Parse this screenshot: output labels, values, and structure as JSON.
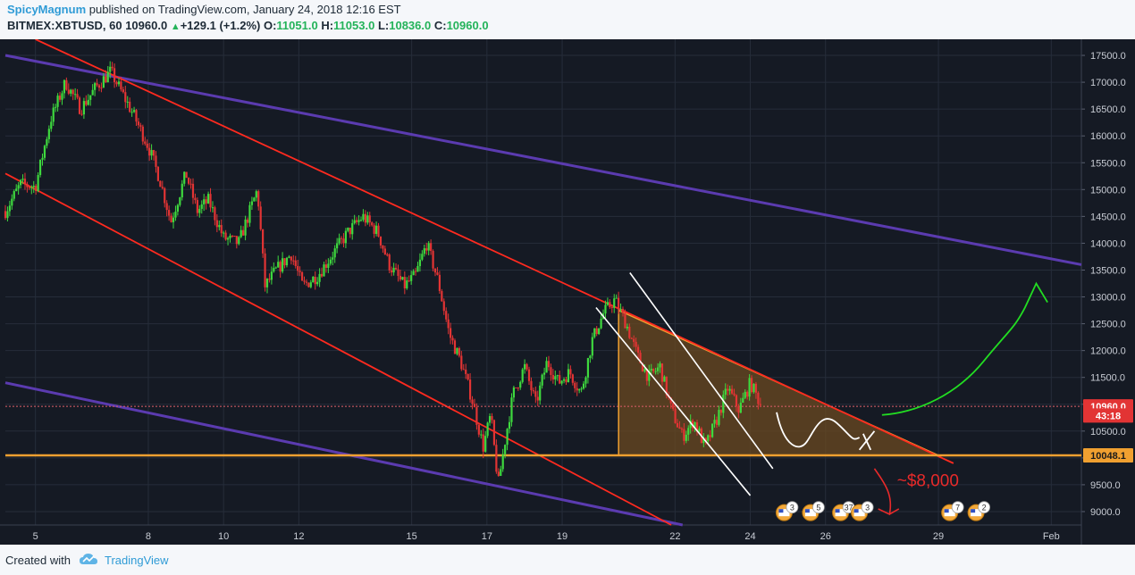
{
  "header": {
    "author": "SpicyMagnum",
    "published": "published on TradingView.com, January 24, 2018 12:16 EST",
    "symbol": "BITMEX:XBTUSD, 60",
    "last": "10960.0",
    "change": "+129.1 (+1.2%)",
    "o_label": "O:",
    "o_value": "11051.0",
    "h_label": "H:",
    "h_value": "11053.0",
    "l_label": "L:",
    "l_value": "10836.0",
    "c_label": "C:",
    "c_value": "10960.0"
  },
  "footer": {
    "created": "Created with",
    "brand": "TradingView"
  },
  "colors": {
    "background": "#151a24",
    "grid": "#262d3a",
    "up": "#3ed93e",
    "down": "#e23434",
    "channel": "#ff2a1f",
    "purple": "#5b3bb0",
    "orange": "#f0a030",
    "wedge_fill": "#6b4a20",
    "white_lines": "#ffffff",
    "green_arrow": "#22dd22",
    "red_annot": "#e82a2a",
    "axis_text": "#c8ccd4"
  },
  "chart_data": {
    "type": "candlestick",
    "symbol": "BITMEX:XBTUSD",
    "timeframe": "60",
    "y_ticks": [
      "9000.0",
      "9500.0",
      "10000.0",
      "10500.0",
      "11000.0",
      "11500.0",
      "12000.0",
      "12500.0",
      "13000.0",
      "13500.0",
      "14000.0",
      "14500.0",
      "15000.0",
      "15500.0",
      "16000.0",
      "16500.0",
      "17000.0",
      "17500.0"
    ],
    "ylim": [
      8750,
      17800
    ],
    "x_labels": [
      {
        "label": "5",
        "day": 5
      },
      {
        "label": "8",
        "day": 8
      },
      {
        "label": "10",
        "day": 10
      },
      {
        "label": "12",
        "day": 12
      },
      {
        "label": "15",
        "day": 15
      },
      {
        "label": "17",
        "day": 17
      },
      {
        "label": "19",
        "day": 19
      },
      {
        "label": "22",
        "day": 22
      },
      {
        "label": "24",
        "day": 24
      },
      {
        "label": "26",
        "day": 26
      },
      {
        "label": "29",
        "day": 29
      },
      {
        "label": "Feb",
        "day": 32
      }
    ],
    "xlim": [
      4.2,
      32.8
    ],
    "price_path": [
      [
        4.2,
        14600
      ],
      [
        4.6,
        15100
      ],
      [
        5.0,
        15050
      ],
      [
        5.4,
        16300
      ],
      [
        5.8,
        17000
      ],
      [
        6.2,
        16500
      ],
      [
        6.6,
        16900
      ],
      [
        7.0,
        17200
      ],
      [
        7.3,
        16800
      ],
      [
        7.6,
        16400
      ],
      [
        8.0,
        15800
      ],
      [
        8.3,
        15200
      ],
      [
        8.6,
        14400
      ],
      [
        9.0,
        15300
      ],
      [
        9.3,
        14600
      ],
      [
        9.6,
        14800
      ],
      [
        10.0,
        14100
      ],
      [
        10.4,
        14000
      ],
      [
        10.7,
        14600
      ],
      [
        10.9,
        15000
      ],
      [
        11.1,
        13200
      ],
      [
        11.4,
        13500
      ],
      [
        11.8,
        13800
      ],
      [
        12.1,
        13200
      ],
      [
        12.5,
        13400
      ],
      [
        12.9,
        13800
      ],
      [
        13.3,
        14200
      ],
      [
        13.7,
        14500
      ],
      [
        14.1,
        14200
      ],
      [
        14.4,
        13600
      ],
      [
        14.8,
        13200
      ],
      [
        15.1,
        13400
      ],
      [
        15.4,
        14000
      ],
      [
        15.7,
        13300
      ],
      [
        16.0,
        12300
      ],
      [
        16.3,
        11800
      ],
      [
        16.6,
        11100
      ],
      [
        16.9,
        10200
      ],
      [
        17.1,
        10800
      ],
      [
        17.3,
        9500
      ],
      [
        17.5,
        10400
      ],
      [
        17.7,
        11200
      ],
      [
        18.0,
        11700
      ],
      [
        18.3,
        11000
      ],
      [
        18.6,
        11800
      ],
      [
        18.9,
        11400
      ],
      [
        19.2,
        11600
      ],
      [
        19.5,
        11200
      ],
      [
        19.8,
        12200
      ],
      [
        20.1,
        12700
      ],
      [
        20.4,
        12950
      ],
      [
        20.7,
        12500
      ],
      [
        21.0,
        11900
      ],
      [
        21.3,
        11500
      ],
      [
        21.6,
        11700
      ],
      [
        21.9,
        10900
      ],
      [
        22.2,
        10400
      ],
      [
        22.5,
        10700
      ],
      [
        22.8,
        10200
      ],
      [
        23.1,
        10700
      ],
      [
        23.4,
        11300
      ],
      [
        23.7,
        10900
      ],
      [
        24.0,
        11400
      ],
      [
        24.3,
        10960
      ]
    ],
    "levels": {
      "current": "10960.0",
      "countdown": "43:18",
      "support": "10048.1"
    },
    "annotations": {
      "target": "~$8,000"
    },
    "event_badges": [
      "3",
      "5",
      "37",
      "3",
      "7",
      "2"
    ]
  }
}
